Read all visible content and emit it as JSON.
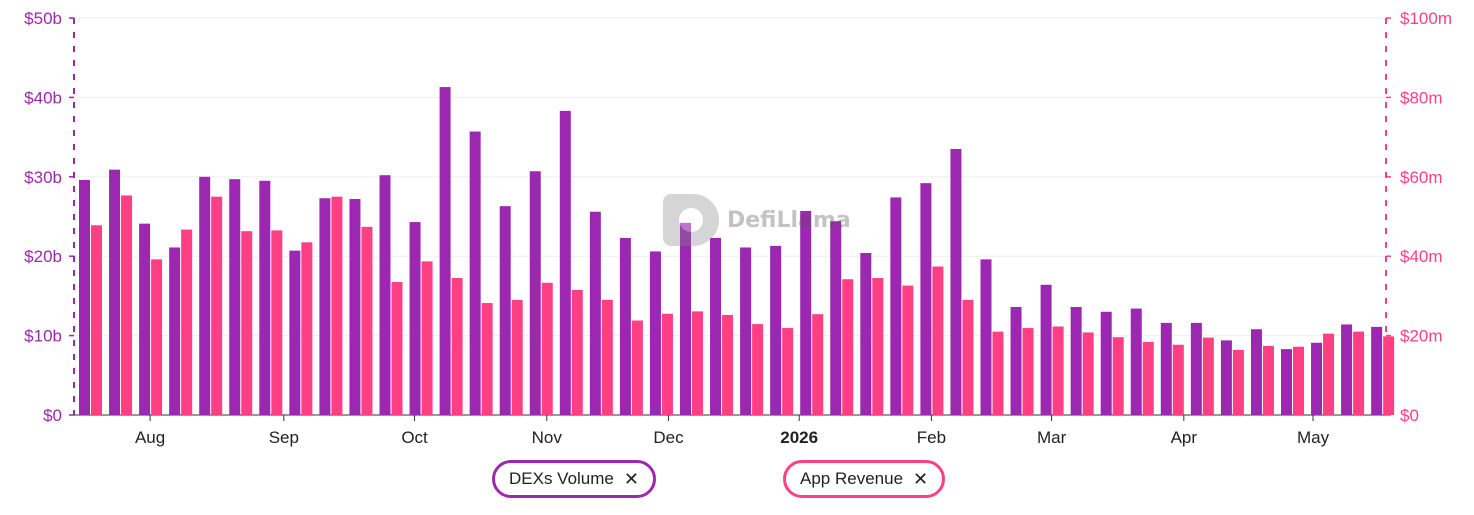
{
  "chart_data": {
    "type": "bar",
    "x_ticks": [
      {
        "label": "Aug",
        "bold": false,
        "at_bar": 2
      },
      {
        "label": "Sep",
        "bold": false,
        "at_bar": 6.45
      },
      {
        "label": "Oct",
        "bold": false,
        "at_bar": 10.8
      },
      {
        "label": "Nov",
        "bold": false,
        "at_bar": 15.2
      },
      {
        "label": "Dec",
        "bold": false,
        "at_bar": 19.25
      },
      {
        "label": "2026",
        "bold": true,
        "at_bar": 23.6
      },
      {
        "label": "Feb",
        "bold": false,
        "at_bar": 28
      },
      {
        "label": "Mar",
        "bold": false,
        "at_bar": 32
      },
      {
        "label": "Apr",
        "bold": false,
        "at_bar": 36.4
      },
      {
        "label": "May",
        "bold": false,
        "at_bar": 40.7
      }
    ],
    "left_axis": {
      "ticks": [
        "$0",
        "$10b",
        "$20b",
        "$30b",
        "$40b",
        "$50b"
      ],
      "max": 50,
      "unit": "b"
    },
    "right_axis": {
      "ticks": [
        "$0",
        "$20m",
        "$40m",
        "$60m",
        "$80m",
        "$100m"
      ],
      "max": 100,
      "unit": "m"
    },
    "grid": true,
    "series": [
      {
        "name": "DEXs Volume",
        "axis": "left",
        "color": "#9c27b0",
        "values": [
          29.6,
          30.9,
          24.1,
          21.1,
          30.0,
          29.7,
          29.5,
          20.7,
          27.3,
          27.2,
          30.2,
          24.3,
          41.3,
          35.7,
          26.3,
          30.7,
          38.3,
          25.6,
          22.3,
          20.6,
          24.2,
          22.3,
          21.1,
          21.3,
          25.7,
          24.4,
          20.4,
          27.4,
          29.2,
          33.5,
          19.6,
          13.6,
          16.4,
          13.6,
          13.0,
          13.4,
          11.6,
          11.6,
          9.4,
          10.8,
          8.3,
          9.1,
          11.4,
          11.1
        ]
      },
      {
        "name": "App Revenue",
        "axis": "right",
        "color": "#ff3f84",
        "values": [
          47.8,
          55.3,
          39.2,
          46.7,
          55.0,
          46.3,
          46.5,
          43.5,
          55.0,
          47.4,
          33.5,
          38.7,
          34.5,
          28.2,
          29.0,
          33.3,
          31.5,
          29.0,
          23.8,
          25.5,
          26.1,
          25.2,
          22.9,
          21.9,
          25.4,
          34.2,
          34.5,
          32.6,
          37.4,
          29.0,
          21.0,
          21.9,
          22.3,
          20.8,
          19.6,
          18.4,
          17.7,
          19.5,
          16.4,
          17.4,
          17.2,
          20.5,
          21.0,
          19.8
        ]
      }
    ]
  },
  "legend": {
    "dex_label": "DEXs Volume",
    "rev_label": "App Revenue",
    "remove_glyph": "✕"
  },
  "watermark": {
    "text": "DefiLlama"
  }
}
